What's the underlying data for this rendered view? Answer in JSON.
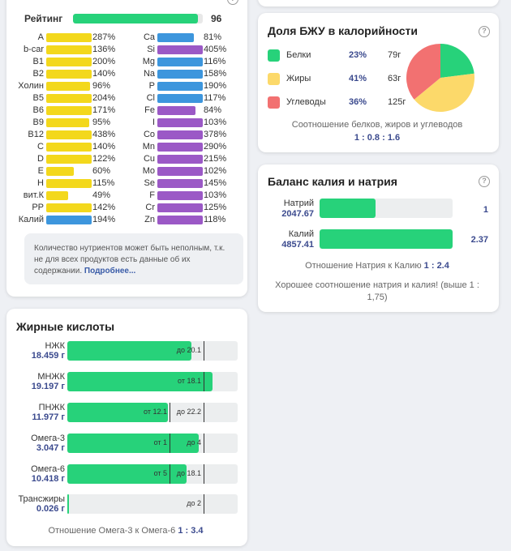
{
  "vitamins": {
    "rating_label": "Рейтинг",
    "rating_value": "96",
    "rating_fraction": 0.96,
    "rating_color": "#27d27a",
    "left": [
      {
        "name": "A",
        "pct": "287%",
        "fill": 1.0,
        "color": "#f3d81c"
      },
      {
        "name": "b-car",
        "pct": "136%",
        "fill": 1.0,
        "color": "#f3d81c"
      },
      {
        "name": "B1",
        "pct": "200%",
        "fill": 1.0,
        "color": "#f3d81c"
      },
      {
        "name": "B2",
        "pct": "140%",
        "fill": 1.0,
        "color": "#f3d81c"
      },
      {
        "name": "Холин",
        "pct": "96%",
        "fill": 0.96,
        "color": "#f3d81c"
      },
      {
        "name": "B5",
        "pct": "204%",
        "fill": 1.0,
        "color": "#f3d81c"
      },
      {
        "name": "B6",
        "pct": "171%",
        "fill": 1.0,
        "color": "#f3d81c"
      },
      {
        "name": "B9",
        "pct": "95%",
        "fill": 0.95,
        "color": "#f3d81c"
      },
      {
        "name": "B12",
        "pct": "438%",
        "fill": 1.0,
        "color": "#f3d81c"
      },
      {
        "name": "C",
        "pct": "140%",
        "fill": 1.0,
        "color": "#f3d81c"
      },
      {
        "name": "D",
        "pct": "122%",
        "fill": 1.0,
        "color": "#f3d81c"
      },
      {
        "name": "E",
        "pct": "60%",
        "fill": 0.6,
        "color": "#f3d81c"
      },
      {
        "name": "H",
        "pct": "115%",
        "fill": 1.0,
        "color": "#f3d81c"
      },
      {
        "name": "вит.К",
        "pct": "49%",
        "fill": 0.49,
        "color": "#f3d81c"
      },
      {
        "name": "PP",
        "pct": "142%",
        "fill": 1.0,
        "color": "#f3d81c"
      },
      {
        "name": "Калий",
        "pct": "194%",
        "fill": 1.0,
        "color": "#3d96dd"
      }
    ],
    "right": [
      {
        "name": "Ca",
        "pct": "81%",
        "fill": 0.81,
        "color": "#3d96dd"
      },
      {
        "name": "Si",
        "pct": "405%",
        "fill": 1.0,
        "color": "#9b59c6"
      },
      {
        "name": "Mg",
        "pct": "116%",
        "fill": 1.0,
        "color": "#3d96dd"
      },
      {
        "name": "Na",
        "pct": "158%",
        "fill": 1.0,
        "color": "#3d96dd"
      },
      {
        "name": "P",
        "pct": "190%",
        "fill": 1.0,
        "color": "#3d96dd"
      },
      {
        "name": "Cl",
        "pct": "117%",
        "fill": 1.0,
        "color": "#3d96dd"
      },
      {
        "name": "Fe",
        "pct": "84%",
        "fill": 0.84,
        "color": "#9b59c6"
      },
      {
        "name": "I",
        "pct": "103%",
        "fill": 1.0,
        "color": "#9b59c6"
      },
      {
        "name": "Co",
        "pct": "378%",
        "fill": 1.0,
        "color": "#9b59c6"
      },
      {
        "name": "Mn",
        "pct": "290%",
        "fill": 1.0,
        "color": "#9b59c6"
      },
      {
        "name": "Cu",
        "pct": "215%",
        "fill": 1.0,
        "color": "#9b59c6"
      },
      {
        "name": "Mo",
        "pct": "102%",
        "fill": 1.0,
        "color": "#9b59c6"
      },
      {
        "name": "Se",
        "pct": "145%",
        "fill": 1.0,
        "color": "#9b59c6"
      },
      {
        "name": "F",
        "pct": "103%",
        "fill": 1.0,
        "color": "#9b59c6"
      },
      {
        "name": "Cr",
        "pct": "125%",
        "fill": 1.0,
        "color": "#9b59c6"
      },
      {
        "name": "Zn",
        "pct": "118%",
        "fill": 1.0,
        "color": "#9b59c6"
      }
    ],
    "note_text": "Количество нутриентов может быть неполным, т.к. не для всех продуктов есть данные об их содержании.",
    "note_link": "Подробнее..."
  },
  "macros": {
    "title": "Доля БЖУ в калорийности",
    "help_icon": "?",
    "items": [
      {
        "name": "Белки",
        "pct": "23%",
        "grams": "79г",
        "color": "#27d27a",
        "share": 23
      },
      {
        "name": "Жиры",
        "pct": "41%",
        "grams": "63г",
        "color": "#fcd96a",
        "share": 41
      },
      {
        "name": "Углеводы",
        "pct": "36%",
        "grams": "125г",
        "color": "#f27171",
        "share": 36
      }
    ],
    "ratio_caption": "Соотношение белков, жиров и углеводов",
    "ratio_value": "1 : 0.8 : 1.6"
  },
  "balance": {
    "title": "Баланс калия и натрия",
    "help_icon": "?",
    "sodium": {
      "label": "Натрий",
      "value": "2047.67",
      "number": "1",
      "fraction": 0.42
    },
    "potassium": {
      "label": "Калий",
      "value": "4857.41",
      "number": "2.37",
      "fraction": 1.0
    },
    "ratio_caption": "Отношение Натрия к Калию",
    "ratio_value": "1 : 2.4",
    "comment": "Хорошее соотношение натрия и калия! (выше 1 : 1,75)"
  },
  "fatty": {
    "title": "Жирные кислоты",
    "rows": [
      {
        "label": "НЖК",
        "value": "18.459 г",
        "fill": 0.73,
        "markers": [
          {
            "text": "до 20.1",
            "pos": 0.8,
            "side": "left"
          }
        ]
      },
      {
        "label": "МНЖК",
        "value": "19.197 г",
        "fill": 0.85,
        "markers": [
          {
            "text": "от 18.1",
            "pos": 0.8,
            "side": "left"
          }
        ]
      },
      {
        "label": "ПНЖК",
        "value": "11.977 г",
        "fill": 0.59,
        "markers": [
          {
            "text": "от 12.1",
            "pos": 0.6,
            "side": "left"
          },
          {
            "text": "до 22.2",
            "pos": 0.8,
            "side": "left"
          }
        ]
      },
      {
        "label": "Омега-3",
        "value": "3.047 г",
        "fill": 0.77,
        "markers": [
          {
            "text": "от 1",
            "pos": 0.6,
            "side": "left"
          },
          {
            "text": "до 4",
            "pos": 0.8,
            "side": "left"
          }
        ]
      },
      {
        "label": "Омега-6",
        "value": "10.418 г",
        "fill": 0.7,
        "markers": [
          {
            "text": "от 5",
            "pos": 0.6,
            "side": "left"
          },
          {
            "text": "до 18.1",
            "pos": 0.8,
            "side": "left"
          }
        ]
      },
      {
        "label": "Трансжиры",
        "value": "0.026 г",
        "fill": 0.01,
        "markers": [
          {
            "text": "до 2",
            "pos": 0.8,
            "side": "left"
          }
        ]
      }
    ],
    "ratio_caption": "Отношение Омега-3 к Омега-6",
    "ratio_value": "1 : 3.4"
  }
}
